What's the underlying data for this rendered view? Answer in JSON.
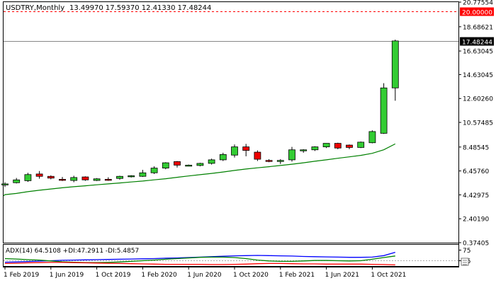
{
  "chart_data": {
    "type": "candlestick",
    "symbol_header": "USDTRY,Monthly",
    "ohlc_header": "13.49970 17.59370 12.41330 17.48244",
    "y_ticks": [
      "20.77554",
      "18.68621",
      "16.63045",
      "14.63045",
      "12.60260",
      "10.57485",
      "8.48545",
      "6.45760",
      "4.42975",
      "2.40190",
      "0.37405"
    ],
    "y_tick_values": [
      20.77554,
      18.68621,
      16.63045,
      14.63045,
      12.6026,
      10.57485,
      8.48545,
      6.4576,
      4.42975,
      2.4019,
      0.37405
    ],
    "ylim": [
      0.37405,
      20.77554
    ],
    "x_ticks": [
      "1 Feb 2019",
      "1 Jun 2019",
      "1 Oct 2019",
      "1 Feb 2020",
      "1 Jun 2020",
      "1 Oct 2020",
      "1 Feb 2021",
      "1 Jun 2021",
      "1 Oct 2021"
    ],
    "x_tick_indices": [
      0,
      4,
      8,
      12,
      16,
      20,
      24,
      28,
      32
    ],
    "first_bar_label": "1 Feb 2019",
    "candles": [
      {
        "o": 5.3,
        "h": 5.5,
        "l": 5.1,
        "c": 5.36
      },
      {
        "o": 5.46,
        "h": 5.86,
        "l": 5.4,
        "c": 5.7
      },
      {
        "o": 5.63,
        "h": 6.3,
        "l": 5.53,
        "c": 6.15
      },
      {
        "o": 6.2,
        "h": 6.45,
        "l": 5.8,
        "c": 6.0
      },
      {
        "o": 6.0,
        "h": 6.08,
        "l": 5.75,
        "c": 5.85
      },
      {
        "o": 5.75,
        "h": 5.95,
        "l": 5.6,
        "c": 5.7
      },
      {
        "o": 5.65,
        "h": 6.05,
        "l": 5.5,
        "c": 5.9
      },
      {
        "o": 5.95,
        "h": 6.0,
        "l": 5.62,
        "c": 5.7
      },
      {
        "o": 5.65,
        "h": 5.85,
        "l": 5.6,
        "c": 5.79
      },
      {
        "o": 5.75,
        "h": 5.92,
        "l": 5.62,
        "c": 5.72
      },
      {
        "o": 5.82,
        "h": 6.05,
        "l": 5.72,
        "c": 6.0
      },
      {
        "o": 6.0,
        "h": 6.1,
        "l": 5.9,
        "c": 6.05
      },
      {
        "o": 6.0,
        "h": 6.55,
        "l": 5.95,
        "c": 6.3
      },
      {
        "o": 6.3,
        "h": 6.85,
        "l": 6.2,
        "c": 6.7
      },
      {
        "o": 6.7,
        "h": 7.2,
        "l": 6.6,
        "c": 7.15
      },
      {
        "o": 7.25,
        "h": 7.3,
        "l": 6.75,
        "c": 6.95
      },
      {
        "o": 6.9,
        "h": 7.0,
        "l": 6.85,
        "c": 6.95
      },
      {
        "o": 6.92,
        "h": 7.15,
        "l": 6.85,
        "c": 7.1
      },
      {
        "o": 7.1,
        "h": 7.5,
        "l": 7.0,
        "c": 7.4
      },
      {
        "o": 7.4,
        "h": 8.0,
        "l": 7.3,
        "c": 7.85
      },
      {
        "o": 7.8,
        "h": 8.7,
        "l": 7.6,
        "c": 8.5
      },
      {
        "o": 8.5,
        "h": 8.75,
        "l": 7.7,
        "c": 8.2
      },
      {
        "o": 8.05,
        "h": 8.2,
        "l": 7.3,
        "c": 7.45
      },
      {
        "o": 7.35,
        "h": 7.45,
        "l": 7.2,
        "c": 7.3
      },
      {
        "o": 7.28,
        "h": 7.45,
        "l": 7.05,
        "c": 7.35
      },
      {
        "o": 7.4,
        "h": 8.5,
        "l": 7.25,
        "c": 8.25
      },
      {
        "o": 8.2,
        "h": 8.3,
        "l": 8.0,
        "c": 8.25
      },
      {
        "o": 8.25,
        "h": 8.55,
        "l": 8.15,
        "c": 8.5
      },
      {
        "o": 8.5,
        "h": 8.8,
        "l": 8.4,
        "c": 8.8
      },
      {
        "o": 8.8,
        "h": 8.85,
        "l": 8.3,
        "c": 8.4
      },
      {
        "o": 8.65,
        "h": 8.7,
        "l": 8.3,
        "c": 8.45
      },
      {
        "o": 8.45,
        "h": 8.95,
        "l": 8.4,
        "c": 8.9
      },
      {
        "o": 8.85,
        "h": 9.9,
        "l": 8.8,
        "c": 9.8
      },
      {
        "o": 9.65,
        "h": 13.9,
        "l": 9.6,
        "c": 13.5
      },
      {
        "o": 13.4997,
        "h": 17.5937,
        "l": 12.4133,
        "c": 17.48244
      }
    ],
    "moving_average": [
      4.45,
      4.55,
      4.7,
      4.82,
      4.93,
      5.03,
      5.12,
      5.2,
      5.28,
      5.36,
      5.44,
      5.52,
      5.6,
      5.7,
      5.8,
      5.92,
      6.03,
      6.14,
      6.25,
      6.37,
      6.5,
      6.62,
      6.72,
      6.82,
      6.92,
      7.03,
      7.15,
      7.28,
      7.4,
      7.53,
      7.65,
      7.78,
      7.95,
      8.25,
      8.75
    ],
    "price_levels": [
      {
        "value": 20.0,
        "label": "20.00000",
        "style": "dashed",
        "color": "#ff0000"
      },
      {
        "value": 17.48244,
        "label": "17.48244",
        "style": "solid",
        "color": "#000000"
      }
    ],
    "colors": {
      "bull": "#33cc33",
      "bear": "#ee0000",
      "ma": "#008000",
      "adx": "#0000ff",
      "plus_di": "#008000",
      "minus_di": "#ff0000",
      "axis": "#000000",
      "background": "#ffffff"
    },
    "indicator": {
      "header": "ADX(14) 64.5108 +DI:47.2911 -DI:5.4857",
      "ylim": [
        0,
        100
      ],
      "ticks": [
        {
          "value": 75,
          "label": "75"
        },
        {
          "value": 25,
          "label": "25"
        }
      ],
      "adx": [
        18,
        19,
        21,
        23,
        25,
        27,
        28,
        29,
        30,
        31,
        32,
        33,
        34,
        35,
        37,
        38,
        40,
        42,
        44,
        46,
        48,
        49,
        50,
        49,
        48,
        47,
        45,
        44,
        43,
        42,
        41,
        41,
        42,
        49,
        64.5108
      ],
      "plus_di": [
        35,
        33,
        30,
        28,
        24,
        20,
        18,
        16,
        16,
        17,
        19,
        22,
        25,
        28,
        32,
        35,
        38,
        41,
        42,
        42,
        40,
        35,
        28,
        24,
        22,
        22,
        24,
        26,
        26,
        25,
        24,
        25,
        32,
        40,
        47.2911
      ],
      "minus_di": [
        12,
        13,
        15,
        16,
        17,
        17,
        16,
        15,
        14,
        13,
        12,
        11,
        10,
        9,
        8,
        8,
        8,
        8,
        7,
        7,
        8,
        9,
        11,
        12,
        12,
        11,
        10,
        10,
        9,
        9,
        9,
        9,
        8,
        7,
        5.4857
      ]
    }
  }
}
